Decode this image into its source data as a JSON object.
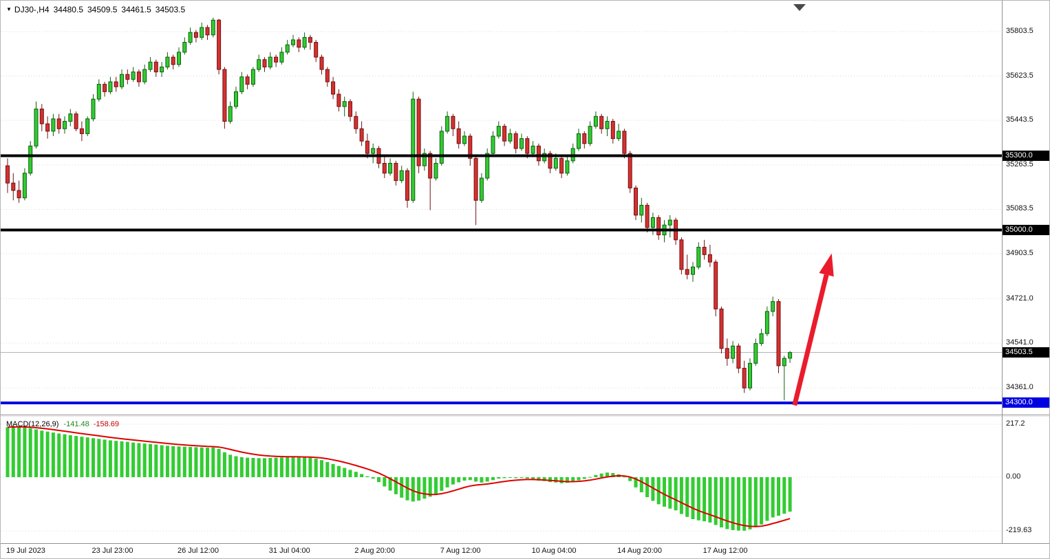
{
  "header": {
    "dropdown_icon": "▼",
    "symbol_period": "DJ30-,H4",
    "open": "34480.5",
    "high": "34509.5",
    "low": "34461.5",
    "close": "34503.5"
  },
  "macd_panel": {
    "label": "MACD(12,26,9)",
    "main_value": "-141.48",
    "signal_value": "-158.69"
  },
  "price_tags": [
    {
      "text": "35300.0",
      "price": 35300.0,
      "bg": "#000000"
    },
    {
      "text": "35000.0",
      "price": 35000.0,
      "bg": "#000000"
    },
    {
      "text": "34503.5",
      "price": 34503.5,
      "bg": "#000000"
    },
    {
      "text": "34300.0",
      "price": 34300.0,
      "bg": "#0000e0"
    }
  ],
  "colors": {
    "bull": "#30cc30",
    "bull_edge": "#115c11",
    "bear": "#d63030",
    "bear_edge": "#6e1212",
    "hline_black": "#000000",
    "hline_blue": "#0000e0",
    "grid": "#d8d8d8",
    "separator": "#909090",
    "histogram": "#33cc33",
    "signal": "#dd0000",
    "arrow": "#ea1c2c",
    "current_price_line": "#b4b4b4",
    "shift_marker": "#4a4a4a"
  },
  "chart_data": {
    "type": "candlestick",
    "title": "DJ30-,H4",
    "timeframe_hours": 4,
    "y_ticks": [
      35803.5,
      35623.5,
      35443.5,
      35263.5,
      35083.5,
      34903.5,
      34721.0,
      34541.0,
      34361.0
    ],
    "hlines": [
      {
        "price": 35300.0,
        "color_key": "hline_black",
        "width": 4
      },
      {
        "price": 35000.0,
        "color_key": "hline_black",
        "width": 4
      },
      {
        "price": 34300.0,
        "color_key": "hline_blue",
        "width": 4
      }
    ],
    "current_price": 34503.5,
    "ohlc_current": {
      "open": 34480.5,
      "high": 34509.5,
      "low": 34461.5,
      "close": 34503.5
    },
    "x_labels": [
      {
        "text": "19 Jul 2023",
        "index": 0
      },
      {
        "text": "23 Jul 23:00",
        "index": 15
      },
      {
        "text": "26 Jul 12:00",
        "index": 30
      },
      {
        "text": "31 Jul 04:00",
        "index": 46
      },
      {
        "text": "2 Aug 20:00",
        "index": 61
      },
      {
        "text": "7 Aug 12:00",
        "index": 76
      },
      {
        "text": "10 Aug 04:00",
        "index": 92
      },
      {
        "text": "14 Aug 20:00",
        "index": 107
      },
      {
        "text": "17 Aug 12:00",
        "index": 122
      }
    ],
    "candles_ohlc": [
      [
        35260,
        35290,
        35150,
        35190
      ],
      [
        35190,
        35230,
        35120,
        35160
      ],
      [
        35160,
        35200,
        35110,
        35130
      ],
      [
        35130,
        35250,
        35120,
        35230
      ],
      [
        35230,
        35360,
        35220,
        35340
      ],
      [
        35340,
        35520,
        35330,
        35490
      ],
      [
        35490,
        35510,
        35400,
        35430
      ],
      [
        35430,
        35460,
        35370,
        35400
      ],
      [
        35400,
        35470,
        35380,
        35450
      ],
      [
        35450,
        35470,
        35390,
        35410
      ],
      [
        35410,
        35460,
        35390,
        35440
      ],
      [
        35440,
        35490,
        35420,
        35470
      ],
      [
        35470,
        35480,
        35400,
        35410
      ],
      [
        35410,
        35440,
        35360,
        35390
      ],
      [
        35390,
        35460,
        35380,
        35450
      ],
      [
        35450,
        35550,
        35440,
        35530
      ],
      [
        35530,
        35610,
        35520,
        35590
      ],
      [
        35590,
        35600,
        35540,
        35560
      ],
      [
        35560,
        35620,
        35550,
        35600
      ],
      [
        35600,
        35620,
        35560,
        35580
      ],
      [
        35580,
        35650,
        35570,
        35630
      ],
      [
        35630,
        35650,
        35590,
        35610
      ],
      [
        35610,
        35660,
        35600,
        35640
      ],
      [
        35640,
        35650,
        35580,
        35600
      ],
      [
        35600,
        35670,
        35590,
        35650
      ],
      [
        35650,
        35700,
        35640,
        35680
      ],
      [
        35680,
        35690,
        35620,
        35640
      ],
      [
        35640,
        35680,
        35620,
        35660
      ],
      [
        35660,
        35720,
        35650,
        35700
      ],
      [
        35700,
        35710,
        35650,
        35670
      ],
      [
        35670,
        35740,
        35660,
        35720
      ],
      [
        35720,
        35780,
        35710,
        35760
      ],
      [
        35760,
        35820,
        35750,
        35800
      ],
      [
        35800,
        35810,
        35760,
        35780
      ],
      [
        35780,
        35840,
        35770,
        35820
      ],
      [
        35820,
        35830,
        35770,
        35790
      ],
      [
        35790,
        35860,
        35780,
        35850
      ],
      [
        35850,
        35855,
        35630,
        35650
      ],
      [
        35650,
        35660,
        35410,
        35440
      ],
      [
        35440,
        35520,
        35430,
        35500
      ],
      [
        35500,
        35580,
        35490,
        35560
      ],
      [
        35560,
        35640,
        35550,
        35620
      ],
      [
        35620,
        35630,
        35570,
        35590
      ],
      [
        35590,
        35660,
        35580,
        35650
      ],
      [
        35650,
        35710,
        35640,
        35690
      ],
      [
        35690,
        35700,
        35640,
        35660
      ],
      [
        35660,
        35720,
        35650,
        35700
      ],
      [
        35700,
        35710,
        35660,
        35680
      ],
      [
        35680,
        35740,
        35670,
        35720
      ],
      [
        35720,
        35770,
        35710,
        35750
      ],
      [
        35750,
        35790,
        35740,
        35770
      ],
      [
        35770,
        35780,
        35720,
        35740
      ],
      [
        35740,
        35800,
        35730,
        35780
      ],
      [
        35780,
        35790,
        35730,
        35760
      ],
      [
        35760,
        35770,
        35680,
        35700
      ],
      [
        35700,
        35710,
        35630,
        35650
      ],
      [
        35650,
        35660,
        35580,
        35600
      ],
      [
        35600,
        35620,
        35530,
        35550
      ],
      [
        35550,
        35570,
        35480,
        35500
      ],
      [
        35500,
        35540,
        35460,
        35520
      ],
      [
        35520,
        35530,
        35440,
        35460
      ],
      [
        35460,
        35480,
        35390,
        35410
      ],
      [
        35410,
        35440,
        35340,
        35360
      ],
      [
        35360,
        35390,
        35290,
        35310
      ],
      [
        35310,
        35350,
        35270,
        35330
      ],
      [
        35330,
        35340,
        35250,
        35270
      ],
      [
        35270,
        35300,
        35210,
        35230
      ],
      [
        35230,
        35290,
        35220,
        35270
      ],
      [
        35270,
        35280,
        35180,
        35200
      ],
      [
        35200,
        35260,
        35190,
        35240
      ],
      [
        35240,
        35250,
        35090,
        35120
      ],
      [
        35120,
        35560,
        35110,
        35530
      ],
      [
        35530,
        35540,
        35230,
        35260
      ],
      [
        35260,
        35330,
        35240,
        35310
      ],
      [
        35310,
        35320,
        35080,
        35210
      ],
      [
        35210,
        35290,
        35200,
        35270
      ],
      [
        35270,
        35420,
        35260,
        35400
      ],
      [
        35400,
        35480,
        35390,
        35460
      ],
      [
        35460,
        35470,
        35380,
        35410
      ],
      [
        35410,
        35440,
        35330,
        35350
      ],
      [
        35350,
        35400,
        35340,
        35380
      ],
      [
        35380,
        35390,
        35260,
        35290
      ],
      [
        35290,
        35300,
        35020,
        35120
      ],
      [
        35120,
        35230,
        35110,
        35210
      ],
      [
        35210,
        35330,
        35200,
        35310
      ],
      [
        35310,
        35400,
        35300,
        35380
      ],
      [
        35380,
        35440,
        35370,
        35420
      ],
      [
        35420,
        35430,
        35340,
        35360
      ],
      [
        35360,
        35410,
        35350,
        35390
      ],
      [
        35390,
        35400,
        35310,
        35330
      ],
      [
        35330,
        35390,
        35320,
        35370
      ],
      [
        35370,
        35380,
        35290,
        35310
      ],
      [
        35310,
        35360,
        35300,
        35340
      ],
      [
        35340,
        35350,
        35260,
        35280
      ],
      [
        35280,
        35330,
        35270,
        35310
      ],
      [
        35310,
        35320,
        35230,
        35250
      ],
      [
        35250,
        35310,
        35240,
        35290
      ],
      [
        35290,
        35300,
        35210,
        35230
      ],
      [
        35230,
        35300,
        35220,
        35280
      ],
      [
        35280,
        35350,
        35270,
        35330
      ],
      [
        35330,
        35410,
        35320,
        35390
      ],
      [
        35390,
        35400,
        35330,
        35350
      ],
      [
        35350,
        35440,
        35340,
        35420
      ],
      [
        35420,
        35480,
        35410,
        35460
      ],
      [
        35460,
        35470,
        35390,
        35410
      ],
      [
        35410,
        35460,
        35380,
        35440
      ],
      [
        35440,
        35450,
        35350,
        35370
      ],
      [
        35370,
        35430,
        35360,
        35400
      ],
      [
        35400,
        35410,
        35290,
        35310
      ],
      [
        35310,
        35320,
        35150,
        35170
      ],
      [
        35170,
        35180,
        35040,
        35060
      ],
      [
        35060,
        35130,
        35030,
        35100
      ],
      [
        35100,
        35110,
        34990,
        35010
      ],
      [
        35010,
        35070,
        34980,
        35050
      ],
      [
        35050,
        35060,
        34960,
        34980
      ],
      [
        34980,
        35040,
        34950,
        35020
      ],
      [
        35020,
        35060,
        34970,
        35040
      ],
      [
        35040,
        35050,
        34940,
        34960
      ],
      [
        34960,
        34970,
        34820,
        34840
      ],
      [
        34840,
        34900,
        34800,
        34820
      ],
      [
        34820,
        34870,
        34790,
        34850
      ],
      [
        34850,
        34950,
        34840,
        34930
      ],
      [
        34930,
        34960,
        34880,
        34900
      ],
      [
        34900,
        34940,
        34850,
        34870
      ],
      [
        34870,
        34880,
        34650,
        34680
      ],
      [
        34680,
        34690,
        34500,
        34520
      ],
      [
        34520,
        34560,
        34450,
        34480
      ],
      [
        34480,
        34550,
        34460,
        34530
      ],
      [
        34530,
        34540,
        34420,
        34440
      ],
      [
        34440,
        34470,
        34340,
        34360
      ],
      [
        34360,
        34480,
        34350,
        34460
      ],
      [
        34460,
        34560,
        34450,
        34540
      ],
      [
        34540,
        34600,
        34530,
        34580
      ],
      [
        34580,
        34690,
        34570,
        34670
      ],
      [
        34670,
        34730,
        34650,
        34710
      ],
      [
        34710,
        34720,
        34420,
        34450
      ],
      [
        34450,
        34490,
        34310,
        34480
      ],
      [
        34480.5,
        34509.5,
        34461.5,
        34503.5
      ]
    ],
    "indicator": {
      "name": "MACD(12,26,9)",
      "params": [
        12,
        26,
        9
      ],
      "main": -141.48,
      "signal": -158.69,
      "signal_period": 9,
      "ticks": [
        {
          "text": "217.2",
          "value": 217.2
        },
        {
          "text": "0.00",
          "value": 0
        },
        {
          "text": "-219.63",
          "value": -219.63
        }
      ],
      "histogram": [
        205,
        210,
        208,
        204,
        200,
        196,
        191,
        187,
        183,
        179,
        176,
        172,
        169,
        166,
        163,
        160,
        157,
        154,
        151,
        149,
        147,
        145,
        142,
        140,
        138,
        136,
        134,
        131,
        129,
        127,
        126,
        125,
        124,
        123,
        122,
        121,
        122,
        116,
        102,
        92,
        86,
        82,
        80,
        79,
        78,
        78,
        79,
        80,
        81,
        82,
        83,
        82,
        81,
        80,
        76,
        70,
        62,
        54,
        46,
        38,
        30,
        22,
        13,
        4,
        -6,
        -20,
        -38,
        -55,
        -70,
        -84,
        -95,
        -100,
        -96,
        -88,
        -80,
        -70,
        -56,
        -42,
        -30,
        -21,
        -14,
        -12,
        -18,
        -22,
        -18,
        -12,
        -6,
        -4,
        -2,
        -4,
        -3,
        -6,
        -10,
        -14,
        -16,
        -20,
        -22,
        -25,
        -23,
        -19,
        -13,
        -7,
        1,
        9,
        15,
        19,
        17,
        12,
        2,
        -16,
        -42,
        -62,
        -82,
        -97,
        -111,
        -121,
        -129,
        -136,
        -151,
        -163,
        -172,
        -177,
        -181,
        -186,
        -196,
        -206,
        -213,
        -217,
        -219,
        -219.63,
        -214,
        -205,
        -194,
        -179,
        -165,
        -158,
        -150,
        -141.48
      ]
    },
    "arrow_annotation": {
      "from_index": 137.8,
      "from_price": 34290,
      "to_index": 144.3,
      "to_price": 34905
    }
  }
}
